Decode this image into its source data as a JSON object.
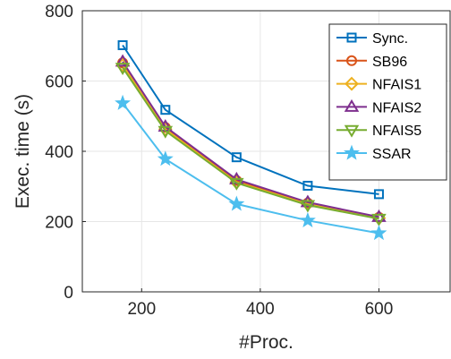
{
  "chart_data": {
    "type": "line",
    "xlabel": "#Proc.",
    "ylabel": "Exec. time (s)",
    "xlim": [
      100,
      720
    ],
    "ylim": [
      0,
      800
    ],
    "xticks": [
      200,
      400,
      600
    ],
    "yticks": [
      0,
      200,
      400,
      600,
      800
    ],
    "grid": true,
    "legend_position": "top-right",
    "x": [
      168,
      240,
      360,
      480,
      600
    ],
    "series": [
      {
        "name": "Sync.",
        "values": [
          702,
          518,
          383,
          302,
          278
        ],
        "color": "#0072BD",
        "marker": "square"
      },
      {
        "name": "SB96",
        "values": [
          652,
          468,
          317,
          253,
          212
        ],
        "color": "#D95319",
        "marker": "circle"
      },
      {
        "name": "NFAIS1",
        "values": [
          645,
          463,
          312,
          250,
          210
        ],
        "color": "#EDB120",
        "marker": "diamond"
      },
      {
        "name": "NFAIS2",
        "values": [
          655,
          470,
          320,
          255,
          213
        ],
        "color": "#7E2F8E",
        "marker": "triangle-up"
      },
      {
        "name": "NFAIS5",
        "values": [
          638,
          458,
          310,
          247,
          208
        ],
        "color": "#77AC30",
        "marker": "triangle-down"
      },
      {
        "name": "SSAR",
        "values": [
          537,
          378,
          250,
          203,
          167
        ],
        "color": "#4DBEEE",
        "marker": "star"
      }
    ]
  }
}
